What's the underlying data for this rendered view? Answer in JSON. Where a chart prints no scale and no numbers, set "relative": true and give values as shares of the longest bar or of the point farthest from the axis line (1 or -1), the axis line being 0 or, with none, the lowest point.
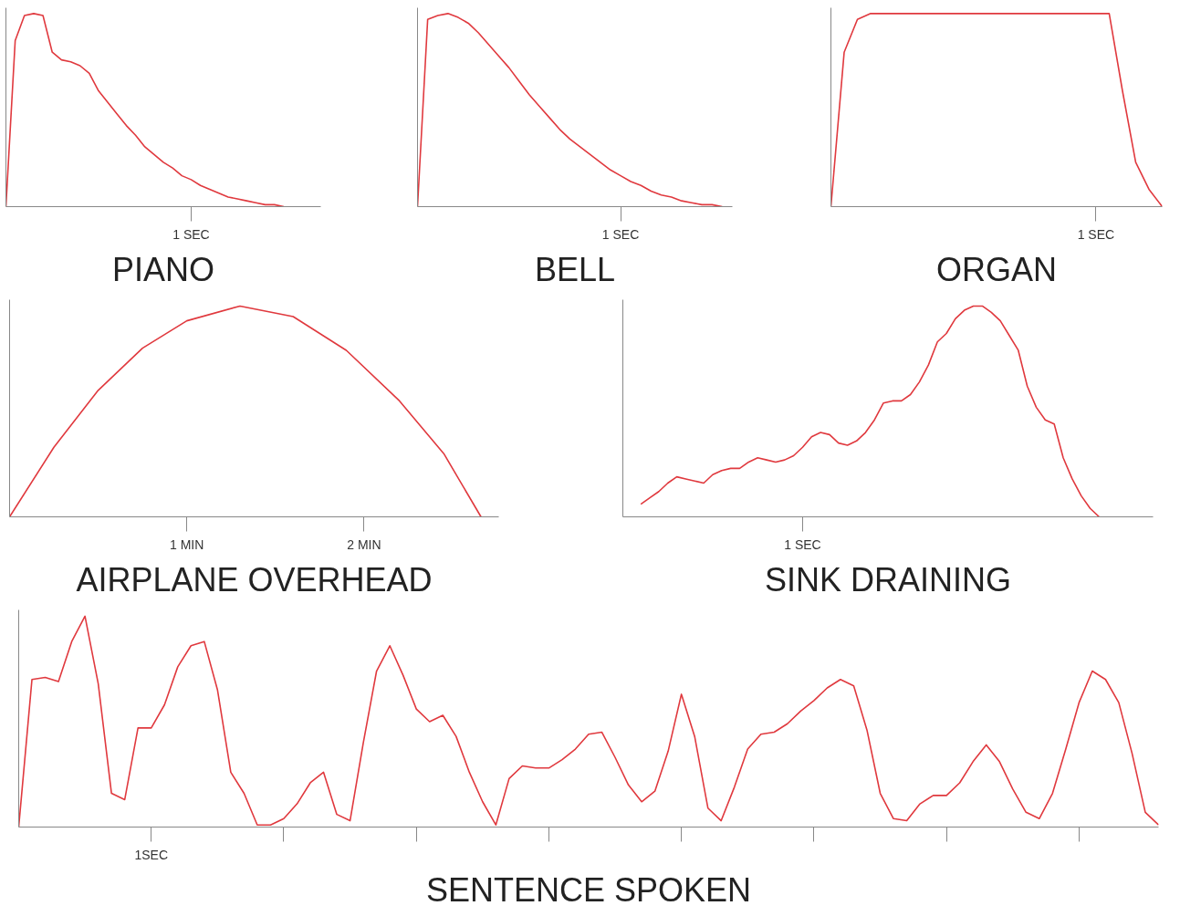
{
  "chart_data": [
    {
      "type": "line",
      "title": "PIANO",
      "relative": true,
      "annotations": [
        "1 SEC"
      ],
      "categories": [
        null,
        null,
        null,
        null,
        null,
        null,
        null,
        null,
        null,
        null,
        null,
        null,
        null,
        null,
        null,
        null,
        null,
        null,
        null,
        null,
        null,
        null,
        null,
        null,
        null,
        null,
        null,
        null,
        null,
        null,
        null,
        null,
        null,
        null,
        null
      ],
      "series": [
        {
          "color": "#e0393e",
          "values": [
            0,
            0.86,
            0.99,
            1,
            0.99,
            0.8,
            0.76,
            0.75,
            0.73,
            0.69,
            0.6,
            0.54,
            0.48,
            0.42,
            0.37,
            0.31,
            0.27,
            0.23,
            0.2,
            0.16,
            0.14,
            0.11,
            0.09,
            0.07,
            0.05,
            0.04,
            0.03,
            0.02,
            0.01,
            0.01,
            0,
            null,
            null,
            null,
            null
          ]
        }
      ]
    },
    {
      "type": "line",
      "title": "BELL",
      "relative": true,
      "annotations": [
        "1 SEC"
      ],
      "categories": [
        null,
        null,
        null,
        null,
        null,
        null,
        null,
        null,
        null,
        null,
        null,
        null,
        null,
        null,
        null,
        null,
        null,
        null,
        null,
        null,
        null,
        null,
        null,
        null,
        null,
        null,
        null,
        null,
        null,
        null,
        null,
        null
      ],
      "series": [
        {
          "color": "#e0393e",
          "values": [
            0,
            0.97,
            0.99,
            1,
            0.98,
            0.95,
            0.9,
            0.84,
            0.78,
            0.72,
            0.65,
            0.58,
            0.52,
            0.46,
            0.4,
            0.35,
            0.31,
            0.27,
            0.23,
            0.19,
            0.16,
            0.13,
            0.11,
            0.08,
            0.06,
            0.05,
            0.03,
            0.02,
            0.01,
            0.01,
            0,
            null
          ]
        }
      ]
    },
    {
      "type": "line",
      "title": "ORGAN",
      "relative": true,
      "annotations": [
        "1 SEC"
      ],
      "categories": [
        null,
        null,
        null,
        null,
        null,
        null,
        null,
        null,
        null,
        null,
        null,
        null,
        null,
        null,
        null,
        null,
        null,
        null,
        null,
        null,
        null,
        null,
        null,
        null,
        null,
        null
      ],
      "series": [
        {
          "color": "#e0393e",
          "values": [
            0,
            0.8,
            0.97,
            1,
            1,
            1,
            1,
            1,
            1,
            1,
            1,
            1,
            1,
            1,
            1,
            1,
            1,
            1,
            1,
            1,
            1,
            1,
            0.6,
            0.23,
            0.09,
            0
          ]
        }
      ]
    },
    {
      "type": "line",
      "title": "AIRPLANE OVERHEAD",
      "relative": true,
      "xlim": [
        0,
        2.76
      ],
      "xticks": [
        {
          "value": 1,
          "label": "1 MIN"
        },
        {
          "value": 2,
          "label": "2 MIN"
        }
      ],
      "series": [
        {
          "color": "#e0393e",
          "x": [
            0,
            0.25,
            0.5,
            0.75,
            1.0,
            1.3,
            1.6,
            1.9,
            2.2,
            2.45,
            2.66
          ],
          "values": [
            0,
            0.33,
            0.6,
            0.8,
            0.93,
            1.0,
            0.95,
            0.79,
            0.55,
            0.3,
            0
          ]
        }
      ]
    },
    {
      "type": "line",
      "title": "SINK DRAINING",
      "relative": true,
      "annotations": [
        "1 SEC"
      ],
      "categories": [
        null,
        null,
        null,
        null,
        null,
        null,
        null,
        null,
        null,
        null,
        null,
        null,
        null,
        null,
        null,
        null,
        null,
        null,
        null,
        null,
        null,
        null,
        null,
        null,
        null,
        null,
        null,
        null,
        null,
        null,
        null,
        null,
        null,
        null,
        null,
        null,
        null,
        null,
        null,
        null,
        null,
        null,
        null,
        null,
        null,
        null,
        null,
        null,
        null,
        null,
        null,
        null,
        null,
        null,
        null,
        null,
        null,
        null,
        null,
        null
      ],
      "series": [
        {
          "color": "#e0393e",
          "values": [
            null,
            null,
            0.06,
            0.09,
            0.12,
            0.16,
            0.19,
            0.18,
            0.17,
            0.16,
            0.2,
            0.22,
            0.23,
            0.23,
            0.26,
            0.28,
            0.27,
            0.26,
            0.27,
            0.29,
            0.33,
            0.38,
            0.4,
            0.39,
            0.35,
            0.34,
            0.36,
            0.4,
            0.46,
            0.54,
            0.55,
            0.55,
            0.58,
            0.64,
            0.72,
            0.83,
            0.87,
            0.94,
            0.98,
            1.0,
            1.0,
            0.97,
            0.93,
            0.86,
            0.79,
            0.62,
            0.52,
            0.46,
            0.44,
            0.28,
            0.18,
            0.1,
            0.04,
            0,
            null,
            null,
            null,
            null,
            null,
            null
          ]
        }
      ]
    },
    {
      "type": "line",
      "title": "SENTENCE SPOKEN",
      "relative": true,
      "annotations": [
        "1SEC"
      ],
      "categories": [
        null,
        null,
        null,
        null,
        null,
        null,
        null,
        null,
        null,
        null,
        null,
        null,
        null,
        null,
        null,
        null,
        null,
        null,
        null,
        null,
        null,
        null,
        null,
        null,
        null,
        null,
        null,
        null,
        null,
        null,
        null,
        null,
        null,
        null,
        null,
        null,
        null,
        null,
        null,
        null,
        null,
        null,
        null,
        null,
        null,
        null,
        null,
        null,
        null,
        null,
        null,
        null,
        null,
        null,
        null,
        null,
        null,
        null,
        null,
        null,
        null,
        null,
        null,
        null,
        null,
        null,
        null,
        null,
        null,
        null,
        null,
        null,
        null,
        null,
        null,
        null,
        null,
        null,
        null,
        null,
        null,
        null,
        null,
        null,
        null,
        null,
        null
      ],
      "series": [
        {
          "color": "#e0393e",
          "values": [
            0,
            0.7,
            0.71,
            0.69,
            0.88,
            1.0,
            0.68,
            0.16,
            0.13,
            0.47,
            0.47,
            0.58,
            0.76,
            0.86,
            0.88,
            0.65,
            0.26,
            0.16,
            0.01,
            0.01,
            0.04,
            0.11,
            0.21,
            0.26,
            0.06,
            0.03,
            0.4,
            0.74,
            0.86,
            0.72,
            0.56,
            0.5,
            0.53,
            0.43,
            0.26,
            0.12,
            0.01,
            0.23,
            0.29,
            0.28,
            0.28,
            0.32,
            0.37,
            0.44,
            0.45,
            0.33,
            0.2,
            0.12,
            0.17,
            0.36,
            0.63,
            0.43,
            0.09,
            0.03,
            0.19,
            0.37,
            0.44,
            0.45,
            0.49,
            0.55,
            0.6,
            0.66,
            0.7,
            0.67,
            0.46,
            0.16,
            0.04,
            0.03,
            0.11,
            0.15,
            0.15,
            0.21,
            0.31,
            0.39,
            0.31,
            0.18,
            0.07,
            0.04,
            0.16,
            0.37,
            0.59,
            0.74,
            0.7,
            0.59,
            0.35,
            0.07,
            0.01
          ]
        }
      ]
    }
  ]
}
